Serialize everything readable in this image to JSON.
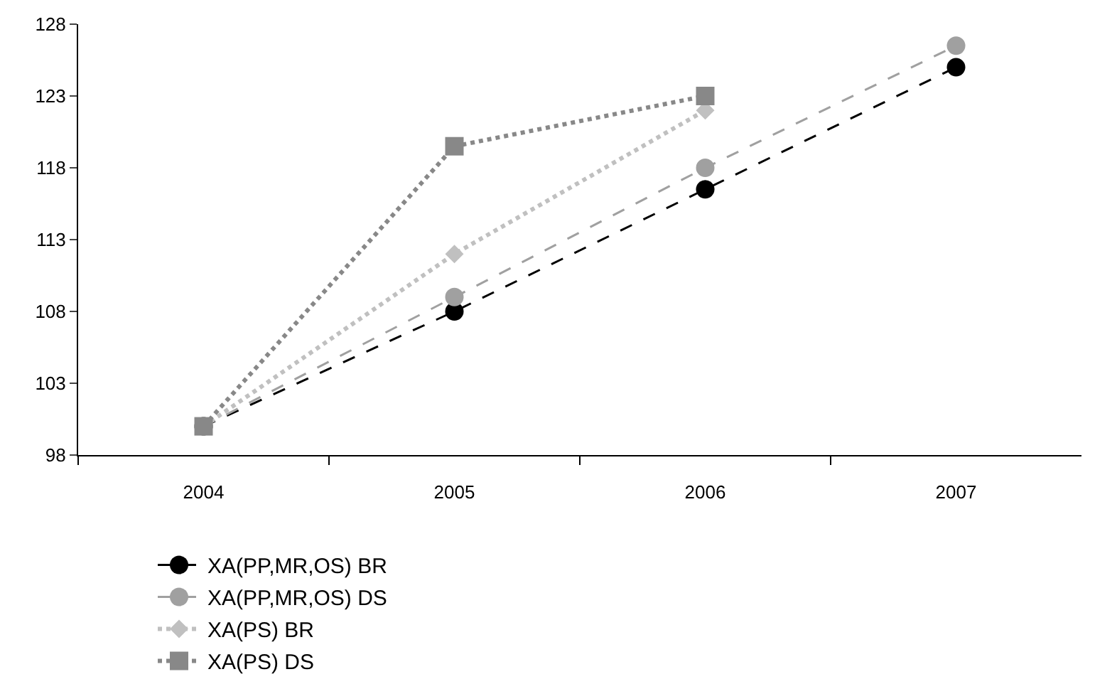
{
  "chart_data": {
    "type": "line",
    "categories": [
      "2004",
      "2005",
      "2006",
      "2007"
    ],
    "series": [
      {
        "name": "XA(PP,MR,OS) BR",
        "color": "#000000",
        "marker": "circle",
        "line_style": "dashed",
        "values": [
          100,
          108,
          116.5,
          125
        ]
      },
      {
        "name": "XA(PP,MR,OS) DS",
        "color": "#a0a0a0",
        "marker": "circle",
        "line_style": "dashed",
        "values": [
          100,
          109,
          118,
          126.5
        ]
      },
      {
        "name": "XA(PS) BR",
        "color": "#c0c0c0",
        "marker": "diamond",
        "line_style": "dotted",
        "values": [
          100,
          112,
          122,
          null
        ]
      },
      {
        "name": "XA(PS) DS",
        "color": "#888888",
        "marker": "square",
        "line_style": "dotted",
        "values": [
          100,
          119.5,
          123,
          null
        ]
      }
    ],
    "ylim": [
      98,
      128
    ],
    "yticks": [
      98,
      103,
      108,
      113,
      118,
      123,
      128
    ],
    "legend": "bottom"
  }
}
